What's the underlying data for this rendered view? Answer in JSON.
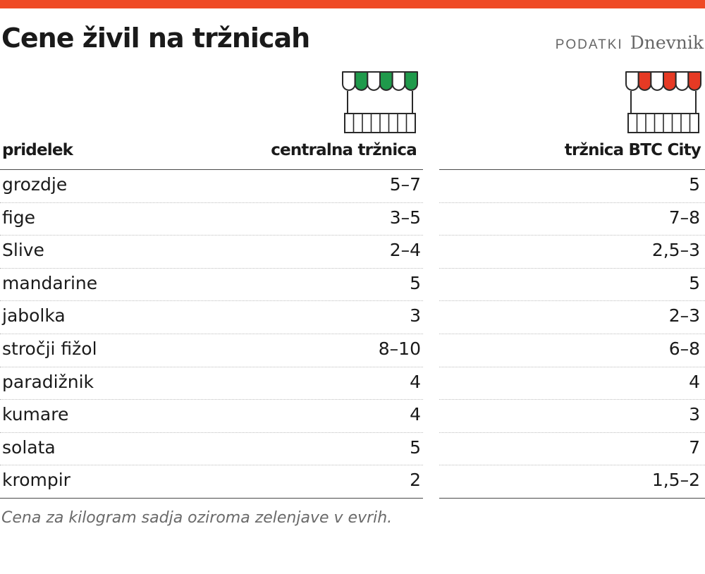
{
  "header": {
    "title": "Cene živil na tržnicah",
    "source_label": "PODATKI",
    "source_name": "Dnevnik"
  },
  "colors": {
    "accent_bar": "#ef4a25",
    "market_1": "#1f9a4b",
    "market_2": "#e63a24"
  },
  "icons": [
    "market-stall-icon-green",
    "market-stall-icon-red"
  ],
  "chart_data": {
    "type": "table",
    "columns": [
      "pridelek",
      "centralna tržnica",
      "tržnica BTC City"
    ],
    "rows": [
      [
        "grozdje",
        "5–7",
        "5"
      ],
      [
        "fige",
        "3–5",
        "7–8"
      ],
      [
        "Slive",
        "2–4",
        "2,5–3"
      ],
      [
        "mandarine",
        "5",
        "5"
      ],
      [
        "jabolka",
        "3",
        "2–3"
      ],
      [
        "stročji fižol",
        "8–10",
        "6–8"
      ],
      [
        "paradižnik",
        "4",
        "4"
      ],
      [
        "kumare",
        "4",
        "3"
      ],
      [
        "solata",
        "5",
        "7"
      ],
      [
        "krompir",
        "2",
        "1,5–2"
      ]
    ],
    "note": "Cena za kilogram sadja oziroma zelenjave v evrih."
  }
}
